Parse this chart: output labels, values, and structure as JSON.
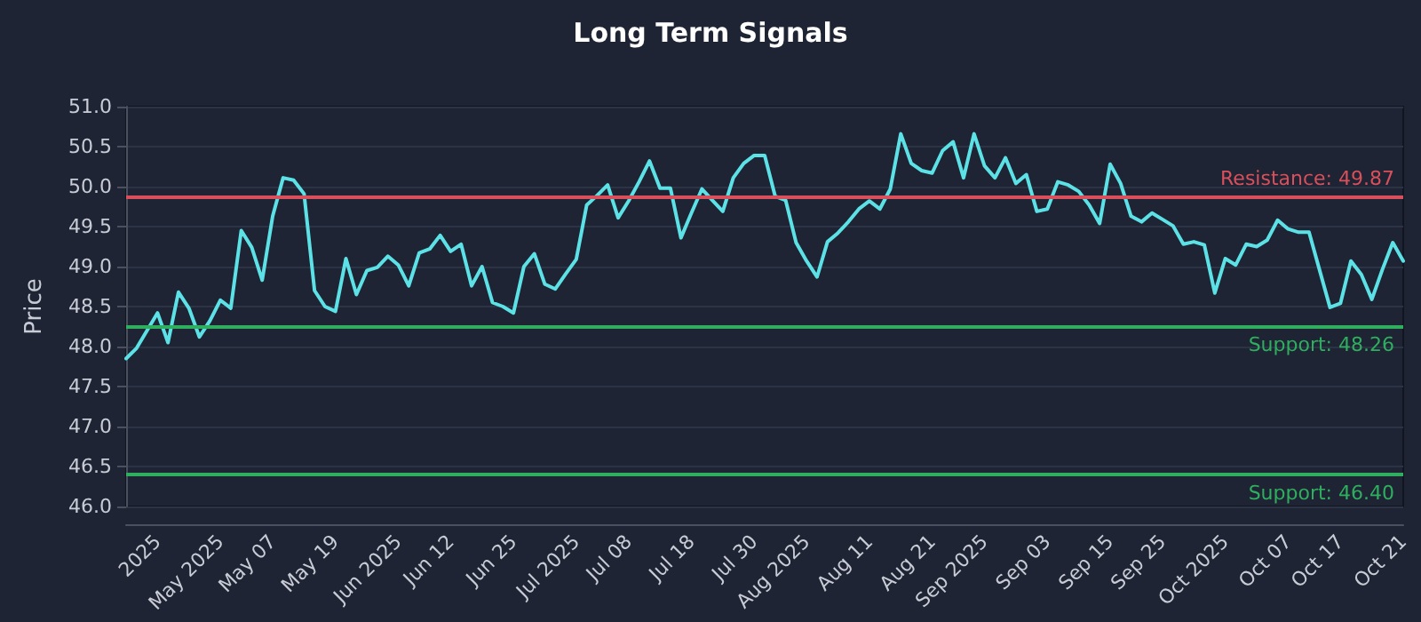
{
  "chart_data": {
    "type": "line",
    "title": "Long Term Signals",
    "ylabel": "Price",
    "categories": [
      null,
      null,
      null,
      "2025",
      null,
      null,
      null,
      null,
      null,
      "May 2025",
      null,
      null,
      null,
      null,
      "May 07",
      null,
      null,
      null,
      null,
      null,
      "May 19",
      null,
      null,
      null,
      null,
      null,
      "Jun 2025",
      null,
      null,
      null,
      null,
      "Jun 12",
      null,
      null,
      null,
      null,
      null,
      "Jun 25",
      null,
      null,
      null,
      null,
      null,
      "Jul 2025",
      null,
      null,
      null,
      null,
      "Jul 08",
      null,
      null,
      null,
      null,
      null,
      "Jul 18",
      null,
      null,
      null,
      null,
      null,
      "Jul 30",
      null,
      null,
      null,
      null,
      "Aug 2025",
      null,
      null,
      null,
      null,
      null,
      "Aug 11",
      null,
      null,
      null,
      null,
      null,
      "Aug 21",
      null,
      null,
      null,
      null,
      "Sep 2025",
      null,
      null,
      null,
      null,
      null,
      "Sep 03",
      null,
      null,
      null,
      null,
      null,
      "Sep 15",
      null,
      null,
      null,
      null,
      "Sep 25",
      null,
      null,
      null,
      null,
      null,
      "Oct 2025",
      null,
      null,
      null,
      null,
      null,
      "Oct 07",
      null,
      null,
      null,
      null,
      "Oct 17",
      null,
      null,
      null,
      null,
      null,
      "Oct 21"
    ],
    "series": [
      {
        "color": "#5ce1e6",
        "values": [
          47.85,
          47.98,
          48.2,
          48.42,
          48.05,
          48.68,
          48.48,
          48.12,
          48.32,
          48.58,
          48.48,
          49.45,
          49.24,
          48.83,
          49.63,
          50.11,
          50.08,
          49.91,
          48.7,
          48.5,
          48.44,
          49.1,
          48.65,
          48.95,
          48.99,
          49.13,
          49.02,
          48.76,
          49.17,
          49.22,
          49.39,
          49.19,
          49.28,
          48.76,
          49.0,
          48.55,
          48.5,
          48.42,
          49.0,
          49.16,
          48.78,
          48.72,
          48.91,
          49.09,
          49.77,
          49.89,
          50.02,
          49.61,
          49.82,
          50.06,
          50.32,
          49.98,
          49.98,
          49.36,
          49.67,
          49.97,
          49.83,
          49.69,
          50.11,
          50.29,
          50.39,
          50.39,
          49.88,
          49.83,
          49.3,
          49.07,
          48.87,
          49.31,
          49.42,
          49.56,
          49.72,
          49.82,
          49.72,
          49.97,
          50.66,
          50.29,
          50.2,
          50.17,
          50.45,
          50.56,
          50.11,
          50.66,
          50.26,
          50.11,
          50.36,
          50.04,
          50.15,
          49.69,
          49.72,
          50.06,
          50.02,
          49.94,
          49.77,
          49.54,
          50.28,
          50.04,
          49.63,
          49.56,
          49.67,
          49.59,
          49.51,
          49.28,
          49.31,
          49.27,
          48.67,
          49.1,
          49.02,
          49.28,
          49.25,
          49.33,
          49.58,
          49.47,
          49.43,
          49.43,
          48.96,
          48.49,
          48.54,
          49.07,
          48.9,
          48.59,
          48.96,
          49.3,
          49.07
        ]
      }
    ],
    "ylim": [
      46,
      51
    ],
    "yticks": [
      {
        "value": 46,
        "label": "46.0"
      },
      {
        "value": 46.5,
        "label": "46.5"
      },
      {
        "value": 47,
        "label": "47.0"
      },
      {
        "value": 47.5,
        "label": "47.5"
      },
      {
        "value": 48,
        "label": "48.0"
      },
      {
        "value": 48.5,
        "label": "48.5"
      },
      {
        "value": 49,
        "label": "49.0"
      },
      {
        "value": 49.5,
        "label": "49.5"
      },
      {
        "value": 50,
        "label": "50.0"
      },
      {
        "value": 50.5,
        "label": "50.5"
      },
      {
        "value": 51,
        "label": "51.0"
      }
    ],
    "ref_lines": [
      {
        "axis": "y",
        "value": 49.87,
        "label": "Resistance: 49.87",
        "color": "#d9505c"
      },
      {
        "axis": "y",
        "value": 48.26,
        "label": "Support: 48.26",
        "color": "#2fae5f"
      },
      {
        "axis": "y",
        "value": 46.4,
        "label": "Support: 46.40",
        "color": "#2fae5f"
      }
    ],
    "grid": "y",
    "marker": "none",
    "line_style": "solid"
  }
}
